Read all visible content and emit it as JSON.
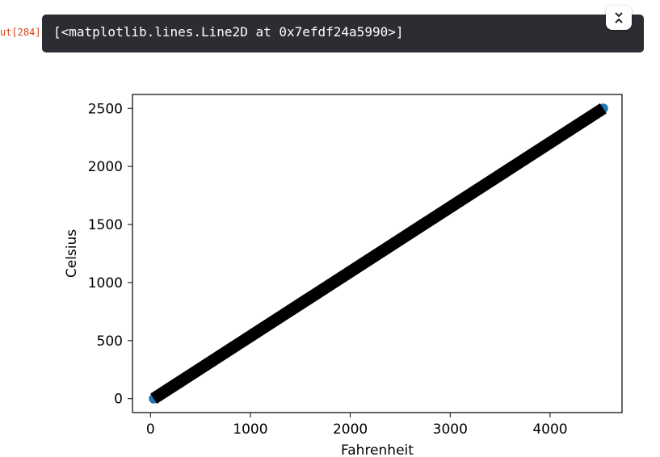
{
  "cell": {
    "prompt": "ut[284]",
    "output_text": "[<matplotlib.lines.Line2D at 0x7efdf24a5990>]"
  },
  "icons": {
    "collapse": "collapse-chevrons-icon"
  },
  "chart_data": {
    "type": "line",
    "title": "",
    "xlabel": "Fahrenheit",
    "ylabel": "Celsius",
    "xlim": [
      -180,
      4720
    ],
    "ylim": [
      -120,
      2620
    ],
    "xticks": [
      0,
      1000,
      2000,
      3000,
      4000
    ],
    "yticks": [
      0,
      500,
      1000,
      1500,
      2000,
      2500
    ],
    "grid": false,
    "series": [
      {
        "style": "scatter",
        "color": "#1f77b4",
        "x": [
          32,
          4532
        ],
        "y": [
          0,
          2500
        ]
      },
      {
        "style": "line",
        "color": "#000000",
        "x": [
          32,
          4532
        ],
        "y": [
          0,
          2500
        ]
      }
    ]
  }
}
